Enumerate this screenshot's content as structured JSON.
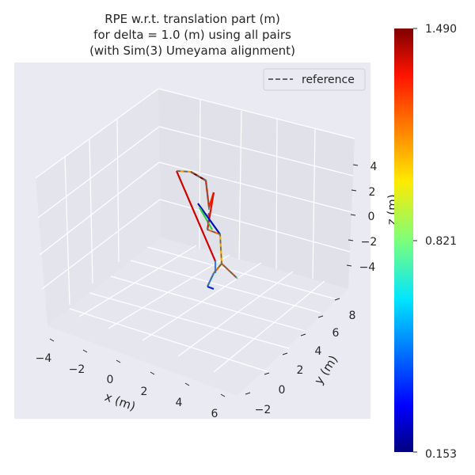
{
  "chart_data": {
    "type": "line",
    "projection": "3d",
    "title": [
      "RPE w.r.t. translation part (m)",
      "for delta = 1.0 (m) using all pairs",
      "(with Sim(3) Umeyama alignment)"
    ],
    "xlabel": "x (m)",
    "ylabel": "y (m)",
    "zlabel": "z (m)",
    "xticks": [
      "−4",
      "−2",
      "0",
      "2",
      "4",
      "6"
    ],
    "yticks": [
      "−2",
      "0",
      "2",
      "4",
      "6",
      "8"
    ],
    "zticks": [
      "4",
      "2",
      "0",
      "−2",
      "−4"
    ],
    "legend": {
      "entries": [
        "reference"
      ],
      "placement": "top-right",
      "style": "dashed",
      "color": "#666666"
    },
    "colorbar": {
      "colormap": "jet",
      "min": 0.153,
      "max": 1.49,
      "ticks": [
        "1.490",
        "0.821",
        "0.153"
      ]
    },
    "grid": true,
    "background": "#eaeaf2"
  }
}
